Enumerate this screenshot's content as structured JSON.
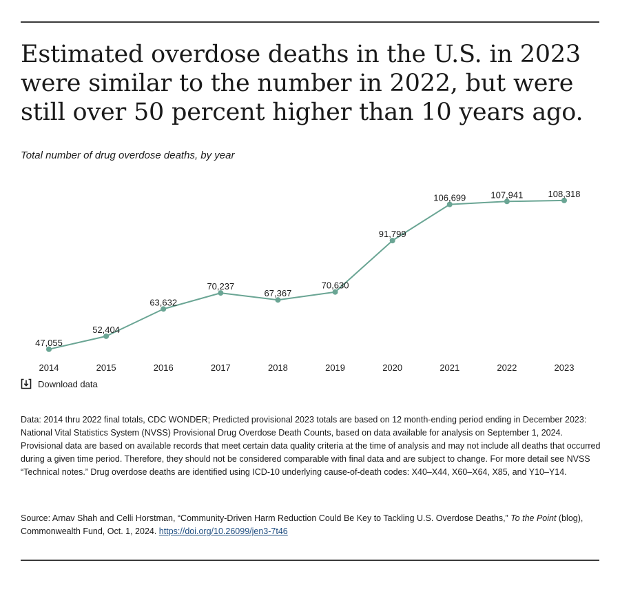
{
  "headline": "Estimated overdose deaths in the U.S. in 2023 were similar to the number in 2022, but were still over 50 percent higher than 10 years ago.",
  "subtitle": "Total number of drug overdose deaths, by year",
  "chart_data": {
    "type": "line",
    "title": "Total number of drug overdose deaths, by year",
    "xlabel": "",
    "ylabel": "",
    "categories": [
      "2014",
      "2015",
      "2016",
      "2017",
      "2018",
      "2019",
      "2020",
      "2021",
      "2022",
      "2023"
    ],
    "values": [
      47055,
      52404,
      63632,
      70237,
      67367,
      70630,
      91799,
      106699,
      107941,
      108318
    ],
    "labels": [
      "47,055",
      "52,404",
      "63,632",
      "70,237",
      "67,367",
      "70,630",
      "91,799",
      "106,699",
      "107,941",
      "108,318"
    ],
    "ylim": [
      45000,
      110000
    ],
    "grid": false,
    "line_color": "#6aa594"
  },
  "download_label": "Download data",
  "notes": "Data: 2014 thru 2022 final totals, CDC WONDER; Predicted provisional 2023 totals are based on 12 month-ending period ending in December 2023: National Vital Statistics System (NVSS) Provisional Drug Overdose Death Counts, based on data available for analysis on September 1, 2024. Provisional data are based on available records that meet certain data quality criteria at the time of analysis and may not include all deaths that occurred during a given time period. Therefore, they should not be considered comparable with final data and are subject to change. For more detail see NVSS “Technical notes.” Drug overdose deaths are identified using ICD-10 underlying cause-of-death codes: X40–X44, X60–X64, X85, and Y10–Y14.",
  "source": {
    "prefix": "Source: Arnav Shah and Celli Horstman, “Community-Driven Harm Reduction Could Be Key to Tackling U.S. Overdose Deaths,” ",
    "publication": "To the Point",
    "suffix": " (blog), Commonwealth Fund, Oct. 1, 2024. ",
    "link_text": "https://doi.org/10.26099/jen3-7t46"
  }
}
